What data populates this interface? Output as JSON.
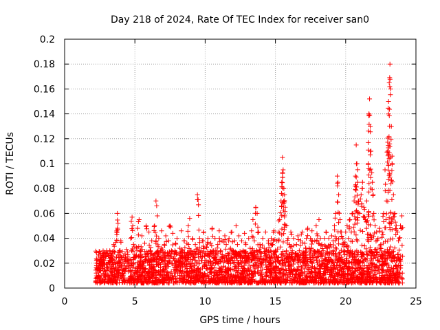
{
  "chart_data": {
    "type": "scatter",
    "title": "Day 218 of 2024, Rate Of TEC Index for receiver san0",
    "xlabel": "GPS time / hours",
    "ylabel": "ROTI / TECUs",
    "xlim": [
      0,
      25
    ],
    "ylim": [
      0,
      0.2
    ],
    "xticks": [
      0,
      5,
      10,
      15,
      20,
      25
    ],
    "xtick_labels": [
      "0",
      "5",
      "10",
      "15",
      "20",
      "25"
    ],
    "yticks": [
      0,
      0.02,
      0.04,
      0.06,
      0.08,
      0.1,
      0.12,
      0.14,
      0.16,
      0.18,
      0.2
    ],
    "ytick_labels": [
      "0",
      "0.02",
      "0.04",
      "0.06",
      "0.08",
      "0.1",
      "0.12",
      "0.14",
      "0.16",
      "0.18",
      "0.2"
    ],
    "grid": true,
    "marker": "+",
    "marker_color": "#ff0000",
    "series": [
      {
        "name": "ROTI",
        "points": [
          [
            2.25,
            0.012
          ],
          [
            2.3,
            0.02
          ],
          [
            2.4,
            0.015
          ],
          [
            2.5,
            0.022
          ],
          [
            2.6,
            0.01
          ],
          [
            2.7,
            0.018
          ],
          [
            2.8,
            0.025
          ],
          [
            2.9,
            0.013
          ],
          [
            3.0,
            0.03
          ],
          [
            3.1,
            0.016
          ],
          [
            3.2,
            0.022
          ],
          [
            3.3,
            0.028
          ],
          [
            3.4,
            0.011
          ],
          [
            3.5,
            0.035
          ],
          [
            3.6,
            0.02
          ],
          [
            3.7,
            0.045
          ],
          [
            3.75,
            0.06
          ],
          [
            3.8,
            0.052
          ],
          [
            3.9,
            0.03
          ],
          [
            4.0,
            0.038
          ],
          [
            4.1,
            0.02
          ],
          [
            4.2,
            0.026
          ],
          [
            4.3,
            0.015
          ],
          [
            4.4,
            0.031
          ],
          [
            4.5,
            0.022
          ],
          [
            4.6,
            0.018
          ],
          [
            4.7,
            0.04
          ],
          [
            4.8,
            0.057
          ],
          [
            4.85,
            0.05
          ],
          [
            4.9,
            0.035
          ],
          [
            5.0,
            0.025
          ],
          [
            5.1,
            0.033
          ],
          [
            5.2,
            0.048
          ],
          [
            5.3,
            0.055
          ],
          [
            5.4,
            0.03
          ],
          [
            5.5,
            0.042
          ],
          [
            5.6,
            0.02
          ],
          [
            5.7,
            0.036
          ],
          [
            5.8,
            0.05
          ],
          [
            5.9,
            0.028
          ],
          [
            6.0,
            0.045
          ],
          [
            6.1,
            0.03
          ],
          [
            6.2,
            0.038
          ],
          [
            6.3,
            0.022
          ],
          [
            6.4,
            0.05
          ],
          [
            6.5,
            0.07
          ],
          [
            6.55,
            0.066
          ],
          [
            6.6,
            0.058
          ],
          [
            6.7,
            0.04
          ],
          [
            6.8,
            0.03
          ],
          [
            6.9,
            0.046
          ],
          [
            7.0,
            0.025
          ],
          [
            7.1,
            0.035
          ],
          [
            7.2,
            0.042
          ],
          [
            7.3,
            0.02
          ],
          [
            7.4,
            0.038
          ],
          [
            7.5,
            0.05
          ],
          [
            7.6,
            0.03
          ],
          [
            7.7,
            0.044
          ],
          [
            7.8,
            0.028
          ],
          [
            7.9,
            0.036
          ],
          [
            8.0,
            0.04
          ],
          [
            8.1,
            0.022
          ],
          [
            8.2,
            0.032
          ],
          [
            8.3,
            0.046
          ],
          [
            8.4,
            0.03
          ],
          [
            8.5,
            0.038
          ],
          [
            8.6,
            0.024
          ],
          [
            8.7,
            0.036
          ],
          [
            8.8,
            0.05
          ],
          [
            8.9,
            0.056
          ],
          [
            9.0,
            0.03
          ],
          [
            9.1,
            0.04
          ],
          [
            9.2,
            0.025
          ],
          [
            9.3,
            0.035
          ],
          [
            9.45,
            0.075
          ],
          [
            9.5,
            0.071
          ],
          [
            9.6,
            0.04
          ],
          [
            9.7,
            0.03
          ],
          [
            9.8,
            0.038
          ],
          [
            9.9,
            0.045
          ],
          [
            10.0,
            0.028
          ],
          [
            10.1,
            0.033
          ],
          [
            10.2,
            0.04
          ],
          [
            10.3,
            0.025
          ],
          [
            10.4,
            0.036
          ],
          [
            10.5,
            0.048
          ],
          [
            10.6,
            0.03
          ],
          [
            10.7,
            0.04
          ],
          [
            10.8,
            0.022
          ],
          [
            10.9,
            0.035
          ],
          [
            11.0,
            0.046
          ],
          [
            11.1,
            0.03
          ],
          [
            11.2,
            0.038
          ],
          [
            11.3,
            0.025
          ],
          [
            11.4,
            0.042
          ],
          [
            11.5,
            0.035
          ],
          [
            11.6,
            0.028
          ],
          [
            11.7,
            0.04
          ],
          [
            11.8,
            0.032
          ],
          [
            11.9,
            0.045
          ],
          [
            12.0,
            0.03
          ],
          [
            12.1,
            0.038
          ],
          [
            12.2,
            0.05
          ],
          [
            12.3,
            0.035
          ],
          [
            12.4,
            0.042
          ],
          [
            12.5,
            0.026
          ],
          [
            12.6,
            0.038
          ],
          [
            12.7,
            0.03
          ],
          [
            12.8,
            0.044
          ],
          [
            12.9,
            0.035
          ],
          [
            13.0,
            0.028
          ],
          [
            13.1,
            0.04
          ],
          [
            13.2,
            0.032
          ],
          [
            13.3,
            0.046
          ],
          [
            13.4,
            0.055
          ],
          [
            13.5,
            0.038
          ],
          [
            13.6,
            0.065
          ],
          [
            13.7,
            0.06
          ],
          [
            13.8,
            0.045
          ],
          [
            13.9,
            0.035
          ],
          [
            14.0,
            0.028
          ],
          [
            14.1,
            0.04
          ],
          [
            14.2,
            0.032
          ],
          [
            14.3,
            0.045
          ],
          [
            14.4,
            0.03
          ],
          [
            14.5,
            0.038
          ],
          [
            14.6,
            0.025
          ],
          [
            14.7,
            0.04
          ],
          [
            14.8,
            0.035
          ],
          [
            14.9,
            0.046
          ],
          [
            15.0,
            0.03
          ],
          [
            15.1,
            0.038
          ],
          [
            15.2,
            0.045
          ],
          [
            15.3,
            0.055
          ],
          [
            15.4,
            0.07
          ],
          [
            15.45,
            0.085
          ],
          [
            15.5,
            0.105
          ],
          [
            15.55,
            0.095
          ],
          [
            15.6,
            0.08
          ],
          [
            15.65,
            0.075
          ],
          [
            15.7,
            0.065
          ],
          [
            15.8,
            0.05
          ],
          [
            15.9,
            0.04
          ],
          [
            16.0,
            0.035
          ],
          [
            16.1,
            0.045
          ],
          [
            16.2,
            0.03
          ],
          [
            16.3,
            0.04
          ],
          [
            16.4,
            0.025
          ],
          [
            16.5,
            0.035
          ],
          [
            16.6,
            0.042
          ],
          [
            16.7,
            0.03
          ],
          [
            16.8,
            0.038
          ],
          [
            16.9,
            0.045
          ],
          [
            17.0,
            0.028
          ],
          [
            17.1,
            0.036
          ],
          [
            17.2,
            0.04
          ],
          [
            17.3,
            0.048
          ],
          [
            17.4,
            0.032
          ],
          [
            17.5,
            0.04
          ],
          [
            17.6,
            0.046
          ],
          [
            17.7,
            0.03
          ],
          [
            17.8,
            0.038
          ],
          [
            17.9,
            0.05
          ],
          [
            18.0,
            0.042
          ],
          [
            18.1,
            0.055
          ],
          [
            18.2,
            0.04
          ],
          [
            18.3,
            0.035
          ],
          [
            18.4,
            0.03
          ],
          [
            18.5,
            0.04
          ],
          [
            18.6,
            0.045
          ],
          [
            18.7,
            0.032
          ],
          [
            18.8,
            0.04
          ],
          [
            18.9,
            0.035
          ],
          [
            19.0,
            0.042
          ],
          [
            19.1,
            0.038
          ],
          [
            19.2,
            0.05
          ],
          [
            19.3,
            0.06
          ],
          [
            19.4,
            0.09
          ],
          [
            19.45,
            0.085
          ],
          [
            19.5,
            0.075
          ],
          [
            19.6,
            0.055
          ],
          [
            19.7,
            0.045
          ],
          [
            19.8,
            0.04
          ],
          [
            19.9,
            0.035
          ],
          [
            20.0,
            0.045
          ],
          [
            20.1,
            0.05
          ],
          [
            20.2,
            0.04
          ],
          [
            20.3,
            0.055
          ],
          [
            20.4,
            0.045
          ],
          [
            20.5,
            0.06
          ],
          [
            20.6,
            0.07
          ],
          [
            20.7,
            0.09
          ],
          [
            20.75,
            0.115
          ],
          [
            20.8,
            0.1
          ],
          [
            20.85,
            0.085
          ],
          [
            20.9,
            0.07
          ],
          [
            21.0,
            0.06
          ],
          [
            21.1,
            0.075
          ],
          [
            21.2,
            0.085
          ],
          [
            21.3,
            0.065
          ],
          [
            21.4,
            0.055
          ],
          [
            21.5,
            0.07
          ],
          [
            21.6,
            0.1
          ],
          [
            21.65,
            0.14
          ],
          [
            21.7,
            0.152
          ],
          [
            21.75,
            0.13
          ],
          [
            21.8,
            0.11
          ],
          [
            21.9,
            0.085
          ],
          [
            22.0,
            0.06
          ],
          [
            22.1,
            0.05
          ],
          [
            22.2,
            0.045
          ],
          [
            22.3,
            0.04
          ],
          [
            22.4,
            0.048
          ],
          [
            22.5,
            0.035
          ],
          [
            22.6,
            0.045
          ],
          [
            22.7,
            0.06
          ],
          [
            22.8,
            0.095
          ],
          [
            22.9,
            0.07
          ],
          [
            23.0,
            0.11
          ],
          [
            23.05,
            0.15
          ],
          [
            23.1,
            0.165
          ],
          [
            23.15,
            0.18
          ],
          [
            23.2,
            0.16
          ],
          [
            23.25,
            0.13
          ],
          [
            23.3,
            0.1
          ],
          [
            23.4,
            0.075
          ],
          [
            23.5,
            0.06
          ],
          [
            23.6,
            0.05
          ],
          [
            23.7,
            0.045
          ],
          [
            23.8,
            0.04
          ],
          [
            23.9,
            0.05
          ],
          [
            24.0,
            0.058
          ]
        ],
        "band": {
          "description": "dense baseline of ROTI values between about 0.005 and 0.03 TECUs from 2.2 to 24 hours",
          "x_range": [
            2.2,
            24.05
          ],
          "y_range": [
            0.004,
            0.03
          ]
        }
      }
    ]
  }
}
